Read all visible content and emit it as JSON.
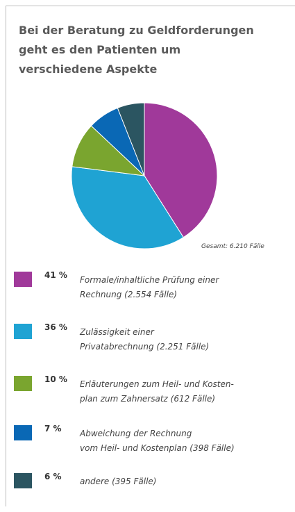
{
  "chart_data": {
    "type": "pie",
    "title": [
      "Bei der Beratung zu Geldforderungen",
      "geht es den Patienten um",
      "verschiedene Aspekte"
    ],
    "annotation": "Gesamt: 6.210 Fälle",
    "categories": [
      [
        "Formale/inhaltliche Prüfung einer",
        "Rechnung (2.554 Fälle)"
      ],
      [
        "Zulässigkeit einer",
        "Privatabrechnung (2.251 Fälle)"
      ],
      [
        "Erläuterungen zum Heil- und Kosten-",
        "plan zum Zahnersatz (612 Fälle)"
      ],
      [
        "Abweichung der Rechnung",
        "vom Heil- und Kostenplan (398 Fälle)"
      ],
      [
        "andere (395 Fälle)"
      ]
    ],
    "values": [
      41,
      36,
      10,
      7,
      6
    ],
    "value_labels": [
      "41 %",
      "36 %",
      "10 %",
      "7 %",
      "6 %"
    ],
    "colors": [
      "#a0399a",
      "#1fa3d3",
      "#7aa52f",
      "#0a68b5",
      "#2b5561"
    ]
  }
}
